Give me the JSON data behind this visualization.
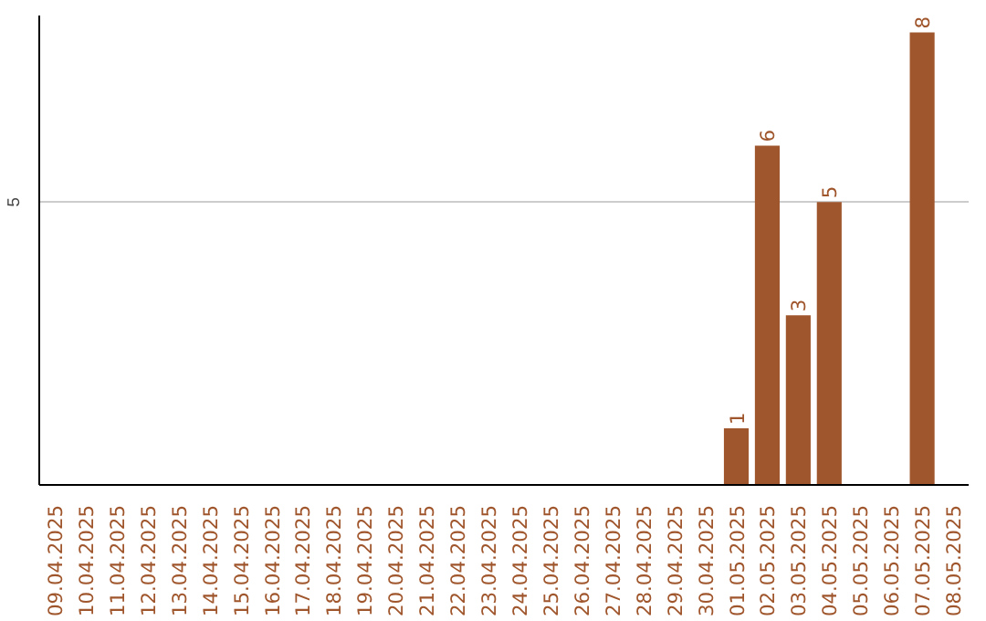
{
  "chart_data": {
    "type": "bar",
    "categories": [
      "09.04.2025",
      "10.04.2025",
      "11.04.2025",
      "12.04.2025",
      "13.04.2025",
      "14.04.2025",
      "15.04.2025",
      "16.04.2025",
      "17.04.2025",
      "18.04.2025",
      "19.04.2025",
      "20.04.2025",
      "21.04.2025",
      "22.04.2025",
      "23.04.2025",
      "24.04.2025",
      "25.04.2025",
      "26.04.2025",
      "27.04.2025",
      "28.04.2025",
      "29.04.2025",
      "30.04.2025",
      "01.05.2025",
      "02.05.2025",
      "03.05.2025",
      "04.05.2025",
      "05.05.2025",
      "06.05.2025",
      "07.05.2025",
      "08.05.2025"
    ],
    "values": [
      null,
      null,
      null,
      null,
      null,
      null,
      null,
      null,
      null,
      null,
      null,
      null,
      null,
      null,
      null,
      null,
      null,
      null,
      null,
      null,
      null,
      null,
      1,
      6,
      3,
      5,
      null,
      null,
      8,
      null
    ],
    "color": "#a0562c",
    "ylim": [
      0,
      8.3
    ],
    "yticks": [
      5
    ],
    "grid": "y",
    "data_labels": true
  }
}
